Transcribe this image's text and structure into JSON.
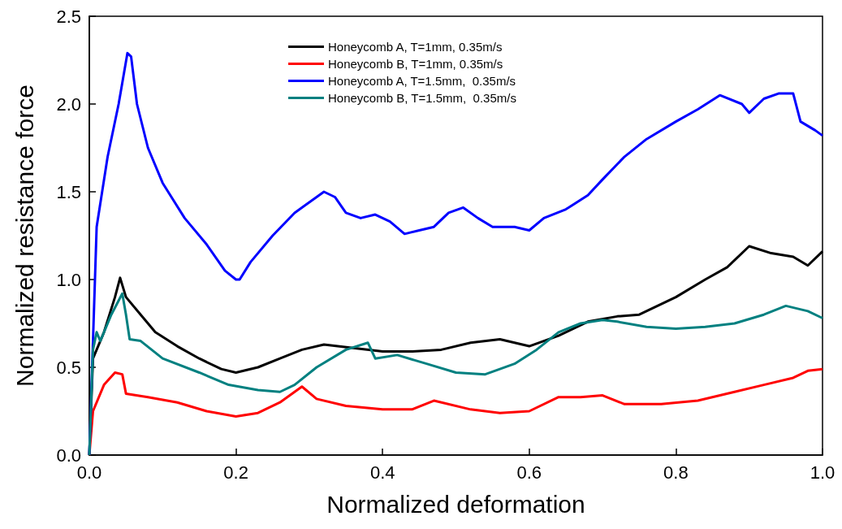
{
  "chart_data": {
    "type": "line",
    "xlabel": "Normalized deformation",
    "ylabel": "Normalized resistance force",
    "xlim": [
      0,
      1
    ],
    "ylim": [
      0,
      2.5
    ],
    "xticks": [
      {
        "value": 0,
        "label": "0.0"
      },
      0.2,
      0.4,
      0.6,
      0.8,
      {
        "value": 1,
        "label": "1.0"
      }
    ],
    "yticks": [
      {
        "value": 0,
        "label": "0.0"
      },
      0.5,
      {
        "value": 1,
        "label": "1.0"
      },
      1.5,
      {
        "value": 2,
        "label": "2.0"
      },
      2.5
    ],
    "grid": false,
    "legend": "top",
    "marker": "none",
    "line_style": "solid",
    "series": [
      {
        "name": "Honeycomb A, T=1mm, 0.35m/s",
        "color": "#000000",
        "x": [
          0,
          0.005,
          0.02,
          0.035,
          0.042,
          0.05,
          0.07,
          0.09,
          0.12,
          0.15,
          0.18,
          0.2,
          0.23,
          0.26,
          0.29,
          0.32,
          0.36,
          0.4,
          0.44,
          0.48,
          0.52,
          0.56,
          0.6,
          0.64,
          0.68,
          0.72,
          0.75,
          0.8,
          0.84,
          0.87,
          0.9,
          0.93,
          0.96,
          0.98,
          1.0
        ],
        "values": [
          0,
          0.55,
          0.7,
          0.9,
          1.01,
          0.9,
          0.8,
          0.7,
          0.62,
          0.55,
          0.49,
          0.47,
          0.5,
          0.55,
          0.6,
          0.63,
          0.61,
          0.59,
          0.59,
          0.6,
          0.64,
          0.66,
          0.62,
          0.68,
          0.76,
          0.79,
          0.8,
          0.9,
          1.0,
          1.07,
          1.19,
          1.15,
          1.13,
          1.08,
          1.16
        ]
      },
      {
        "name": "Honeycomb B, T=1mm, 0.35m/s",
        "color": "#ff0000",
        "x": [
          0,
          0.005,
          0.02,
          0.035,
          0.045,
          0.05,
          0.08,
          0.12,
          0.16,
          0.2,
          0.23,
          0.26,
          0.29,
          0.31,
          0.35,
          0.4,
          0.44,
          0.47,
          0.52,
          0.56,
          0.6,
          0.64,
          0.67,
          0.7,
          0.73,
          0.78,
          0.83,
          0.88,
          0.92,
          0.96,
          0.98,
          1.0
        ],
        "values": [
          0,
          0.25,
          0.4,
          0.47,
          0.46,
          0.35,
          0.33,
          0.3,
          0.25,
          0.22,
          0.24,
          0.3,
          0.39,
          0.32,
          0.28,
          0.26,
          0.26,
          0.31,
          0.26,
          0.24,
          0.25,
          0.33,
          0.33,
          0.34,
          0.29,
          0.29,
          0.31,
          0.36,
          0.4,
          0.44,
          0.48,
          0.49
        ]
      },
      {
        "name": "Honeycomb A, T=1.5mm,  0.35m/s",
        "color": "#0000ff",
        "x": [
          0,
          0.01,
          0.025,
          0.04,
          0.052,
          0.057,
          0.065,
          0.08,
          0.1,
          0.13,
          0.16,
          0.185,
          0.2,
          0.205,
          0.22,
          0.25,
          0.28,
          0.31,
          0.32,
          0.335,
          0.35,
          0.37,
          0.39,
          0.41,
          0.43,
          0.45,
          0.47,
          0.49,
          0.51,
          0.53,
          0.55,
          0.58,
          0.6,
          0.62,
          0.65,
          0.68,
          0.7,
          0.73,
          0.76,
          0.8,
          0.83,
          0.86,
          0.89,
          0.9,
          0.92,
          0.94,
          0.96,
          0.97,
          0.99,
          1.0
        ],
        "values": [
          0,
          1.3,
          1.7,
          2.0,
          2.29,
          2.27,
          2.0,
          1.75,
          1.55,
          1.35,
          1.2,
          1.05,
          1.0,
          1.0,
          1.1,
          1.25,
          1.38,
          1.47,
          1.5,
          1.47,
          1.38,
          1.35,
          1.37,
          1.33,
          1.26,
          1.28,
          1.3,
          1.38,
          1.41,
          1.35,
          1.3,
          1.3,
          1.28,
          1.35,
          1.4,
          1.48,
          1.57,
          1.7,
          1.8,
          1.9,
          1.97,
          2.05,
          2.0,
          1.95,
          2.03,
          2.06,
          2.06,
          1.9,
          1.85,
          1.82
        ]
      },
      {
        "name": "Honeycomb B, T=1.5mm,  0.35m/s",
        "color": "#008080",
        "x": [
          0,
          0.005,
          0.01,
          0.015,
          0.03,
          0.045,
          0.05,
          0.055,
          0.07,
          0.1,
          0.15,
          0.19,
          0.23,
          0.26,
          0.28,
          0.31,
          0.35,
          0.38,
          0.39,
          0.42,
          0.46,
          0.5,
          0.54,
          0.58,
          0.61,
          0.64,
          0.67,
          0.7,
          0.72,
          0.76,
          0.8,
          0.84,
          0.88,
          0.92,
          0.95,
          0.98,
          1.0
        ],
        "values": [
          0,
          0.6,
          0.7,
          0.65,
          0.8,
          0.92,
          0.8,
          0.66,
          0.65,
          0.55,
          0.47,
          0.4,
          0.37,
          0.36,
          0.4,
          0.5,
          0.6,
          0.64,
          0.55,
          0.57,
          0.52,
          0.47,
          0.46,
          0.52,
          0.6,
          0.7,
          0.75,
          0.77,
          0.76,
          0.73,
          0.72,
          0.73,
          0.75,
          0.8,
          0.85,
          0.82,
          0.78
        ]
      }
    ]
  }
}
